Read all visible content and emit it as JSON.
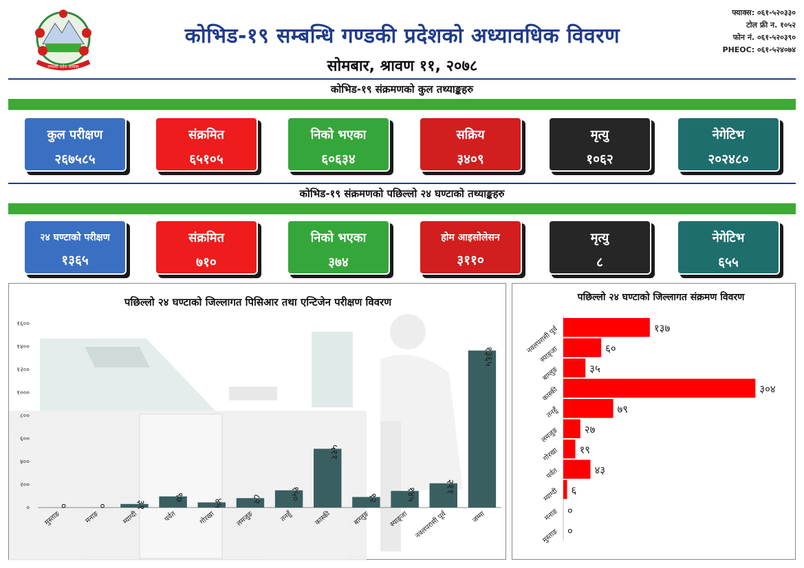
{
  "header": {
    "title": "कोभिड-१९ सम्बन्धि गण्डकी प्रदेशको अध्यावधिक विवरण",
    "date": "सोमबार, श्रावण ११, २०७८",
    "contacts": [
      "फ्याक्स: ०६१-५२०३३०",
      "टोल फ्री न. १०५२",
      "फोन नं. ०६१-५२०३९०",
      "PHEOC: ०६१-५२४०७४"
    ],
    "emblem_text": "गण्डकी प्रदेश सरकार"
  },
  "total_section": {
    "title": "कोभिड-१९ संक्रमणको कुल तथ्याङ्कहरु",
    "cards": [
      {
        "label": "कुल परीक्षण",
        "value": "२६७५८५",
        "color": "blue"
      },
      {
        "label": "संक्रमित",
        "value": "६५१०५",
        "color": "red"
      },
      {
        "label": "निको भएका",
        "value": "६०६३४",
        "color": "green"
      },
      {
        "label": "सक्रिय",
        "value": "३४०९",
        "color": "dred"
      },
      {
        "label": "मृत्यु",
        "value": "१०६२",
        "color": "black"
      },
      {
        "label": "नेगेटिभ",
        "value": "२०२४८०",
        "color": "teal"
      }
    ]
  },
  "last24_section": {
    "title": "कोभिड-१९ संक्रमणको पछिल्लो २४ घण्टाको तथ्याङ्कहरु",
    "cards": [
      {
        "label": "२४ घण्टाको परीक्षण",
        "value": "१३६५",
        "color": "blue"
      },
      {
        "label": "संक्रमित",
        "value": "७१०",
        "color": "red"
      },
      {
        "label": "निको भएका",
        "value": "३७४",
        "color": "green"
      },
      {
        "label": "होम आइसोलेसन",
        "value": "३११०",
        "color": "dred"
      },
      {
        "label": "मृत्यु",
        "value": "८",
        "color": "black"
      },
      {
        "label": "नेगेटिभ",
        "value": "६५५",
        "color": "teal"
      }
    ]
  },
  "chart_data": [
    {
      "type": "bar",
      "title": "पछिल्लो २४ घण्टाको जिल्लागत पिसिआर तथा एन्टिजेन परीक्षण विवरण",
      "categories": [
        "मुस्ताङ",
        "मनाङ",
        "म्याग्दी",
        "पर्वत",
        "गोरखा",
        "लमजुङ",
        "तनहुँ",
        "कास्की",
        "बाग्लुङ",
        "स्याङ्जा",
        "नवलपरासी पूर्व",
        "जम्मा"
      ],
      "values": [
        0,
        0,
        31,
        97,
        45,
        82,
        150,
        511,
        92,
        145,
        211,
        1365
      ],
      "value_labels": [
        "०",
        "०",
        "३१",
        "९७",
        "४५",
        "८२",
        "१५०",
        "५११",
        "९२",
        "१४५",
        "२११",
        "१३६५"
      ],
      "ylim": [
        0,
        1600
      ],
      "yticks": [
        0,
        200,
        400,
        600,
        800,
        1000,
        1200,
        1400,
        1600
      ],
      "ytick_labels": [
        "०",
        "२००",
        "४००",
        "६००",
        "८००",
        "१०००",
        "१२००",
        "१४००",
        "१६००"
      ],
      "color": "#3a5f60"
    },
    {
      "type": "bar",
      "orientation": "horizontal",
      "title": "पछिल्लो २४ घण्टाको जिल्लागत संक्रमण विवरण",
      "categories": [
        "नवलपरासी पूर्व",
        "स्याङ्जा",
        "बाग्लुङ",
        "कास्की",
        "तनहुँ",
        "लमजुङ",
        "गोरखा",
        "पर्वत",
        "म्याग्दी",
        "मनाङ",
        "मुस्ताङ"
      ],
      "values": [
        137,
        60,
        35,
        304,
        79,
        27,
        19,
        43,
        6,
        0,
        0
      ],
      "value_labels": [
        "१३७",
        "६०",
        "३५",
        "३०४",
        "७९",
        "२७",
        "१९",
        "४३",
        "६",
        "०",
        "०"
      ],
      "xlim": [
        0,
        320
      ],
      "color": "#ff0000"
    }
  ]
}
